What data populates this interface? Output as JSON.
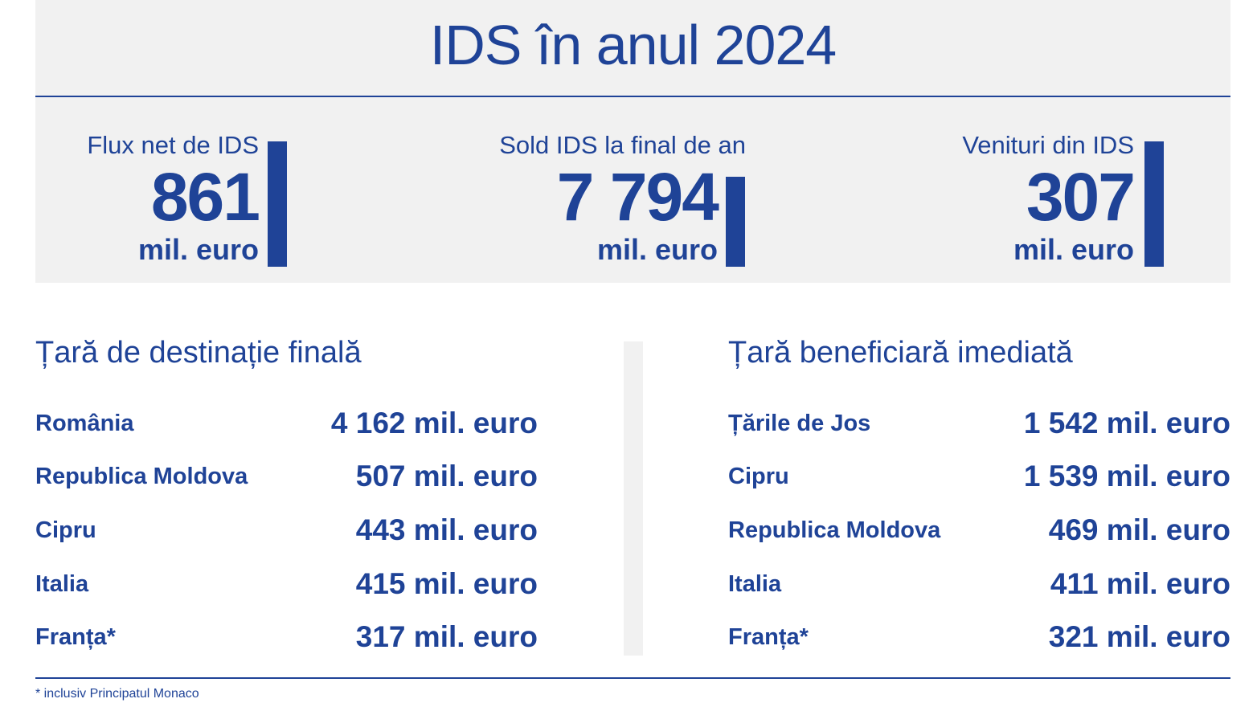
{
  "title": "IDS în anul 2024",
  "kpis": [
    {
      "label": "Flux net de IDS",
      "value": "861",
      "unit": "mil. euro"
    },
    {
      "label": "Sold IDS la final de an",
      "value": "7 794",
      "unit": "mil. euro"
    },
    {
      "label": "Venituri din IDS",
      "value": "307",
      "unit": "mil. euro"
    }
  ],
  "left": {
    "heading": "Țară de destinație finală",
    "rows": [
      {
        "name": "România",
        "value": "4 162 mil. euro"
      },
      {
        "name": "Republica Moldova",
        "value": "507 mil. euro"
      },
      {
        "name": "Cipru",
        "value": "443 mil. euro"
      },
      {
        "name": "Italia",
        "value": "415 mil. euro"
      },
      {
        "name": "Franța*",
        "value": "317 mil. euro"
      }
    ]
  },
  "right": {
    "heading": "Țară beneficiară imediată",
    "rows": [
      {
        "name": "Țările de Jos",
        "value": "1 542 mil. euro"
      },
      {
        "name": "Cipru",
        "value": "1 539 mil. euro"
      },
      {
        "name": "Republica Moldova",
        "value": "469 mil. euro"
      },
      {
        "name": "Italia",
        "value": "411 mil. euro"
      },
      {
        "name": "Franța*",
        "value": "321 mil. euro"
      }
    ]
  },
  "footnote": "* inclusiv Principatul Monaco",
  "colors": {
    "accent": "#1f4397",
    "panel": "#f1f1f1"
  }
}
